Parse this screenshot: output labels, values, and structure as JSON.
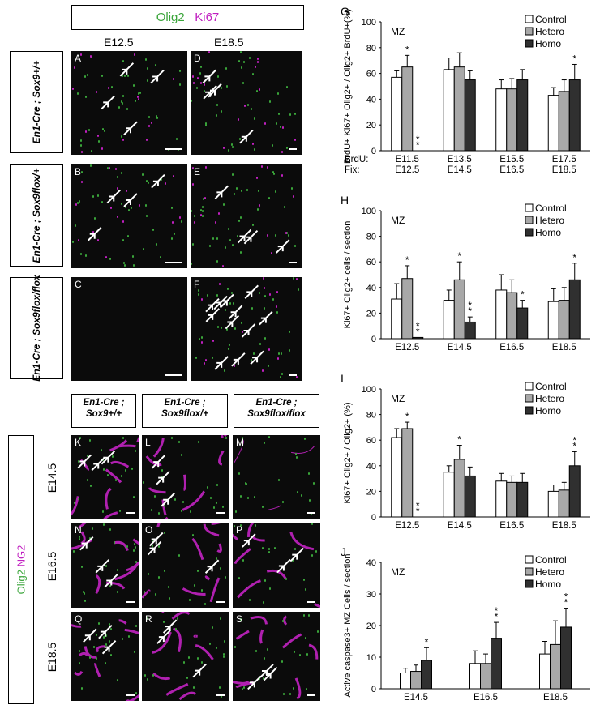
{
  "top": {
    "marker1": "Olig2",
    "marker2": "Ki67",
    "col_e125": "E12.5",
    "col_e185": "E18.5",
    "row1": "En1-Cre ; Sox9+/+",
    "row2": "En1-Cre ; Sox9flox/+",
    "row3": "En1-Cre ; Sox9flox/flox",
    "panels": [
      "A",
      "B",
      "C",
      "D",
      "E",
      "F"
    ]
  },
  "bottom": {
    "col1_l1": "En1-Cre ;",
    "col1_l2": "Sox9+/+",
    "col2_l1": "En1-Cre ;",
    "col2_l2": "Sox9flox/+",
    "col3_l1": "En1-Cre ;",
    "col3_l2": "Sox9flox/flox",
    "marker1": "Olig2",
    "marker2": "NG2",
    "stages": [
      "E14.5",
      "E16.5",
      "E18.5"
    ],
    "panels": [
      "K",
      "L",
      "M",
      "N",
      "O",
      "P",
      "Q",
      "R",
      "S"
    ]
  },
  "colors": {
    "green": "#3aa53a",
    "magenta": "#c020c0",
    "control": "#ffffff",
    "hetero": "#a8a8a8",
    "homo": "#303030"
  },
  "chart_data": [
    {
      "panel": "G",
      "type": "bar",
      "region": "MZ",
      "ylabel": "BrdU+ Ki67+ Olig2+ / Olig2+ BrdU+(%)",
      "ylim": [
        0,
        100
      ],
      "yticks": [
        0,
        20,
        40,
        60,
        80,
        100
      ],
      "xrow1_label": "BrdU:",
      "xrow2_label": "Fix:",
      "categories": [
        "E11.5",
        "E13.5",
        "E15.5",
        "E17.5"
      ],
      "categories2": [
        "E12.5",
        "E14.5",
        "E16.5",
        "E18.5"
      ],
      "series": [
        {
          "name": "Control",
          "values": [
            57,
            63,
            48,
            43
          ],
          "err": [
            5,
            9,
            7,
            6
          ]
        },
        {
          "name": "Hetero",
          "values": [
            65,
            65,
            48,
            46
          ],
          "err": [
            9,
            11,
            8,
            9
          ]
        },
        {
          "name": "Homo",
          "values": [
            0,
            55,
            55,
            55
          ],
          "err": [
            0,
            7,
            8,
            12
          ]
        }
      ],
      "sig": [
        [
          "*",
          "**"
        ],
        [
          "",
          ""
        ],
        [
          "",
          ""
        ],
        [
          "",
          "*"
        ]
      ],
      "legend": "top-right"
    },
    {
      "panel": "H",
      "type": "bar",
      "region": "MZ",
      "ylabel": "Ki67+ Olig2+ cells / section",
      "ylim": [
        0,
        100
      ],
      "yticks": [
        0,
        20,
        40,
        60,
        80,
        100
      ],
      "categories": [
        "E12.5",
        "E14.5",
        "E16.5",
        "E18.5"
      ],
      "series": [
        {
          "name": "Control",
          "values": [
            31,
            30,
            38,
            29
          ],
          "err": [
            12,
            8,
            12,
            10
          ]
        },
        {
          "name": "Hetero",
          "values": [
            47,
            46,
            36,
            30
          ],
          "err": [
            10,
            14,
            10,
            10
          ]
        },
        {
          "name": "Homo",
          "values": [
            1,
            13,
            24,
            46
          ],
          "err": [
            0,
            4,
            6,
            13
          ]
        }
      ],
      "sig": [
        [
          "*",
          "**"
        ],
        [
          "*",
          "**"
        ],
        [
          "",
          "*"
        ],
        [
          "",
          "*"
        ]
      ],
      "legend": "top-right"
    },
    {
      "panel": "I",
      "type": "bar",
      "region": "MZ",
      "ylabel": "Ki67+ Olig2+ / Olig2+ (%)",
      "ylim": [
        0,
        100
      ],
      "yticks": [
        0,
        20,
        40,
        60,
        80,
        100
      ],
      "categories": [
        "E12.5",
        "E14.5",
        "E16.5",
        "E18.5"
      ],
      "series": [
        {
          "name": "Control",
          "values": [
            62,
            35,
            28,
            20
          ],
          "err": [
            7,
            5,
            6,
            5
          ]
        },
        {
          "name": "Hetero",
          "values": [
            69,
            45,
            27,
            21
          ],
          "err": [
            5,
            11,
            5,
            6
          ]
        },
        {
          "name": "Homo",
          "values": [
            0,
            32,
            27,
            40
          ],
          "err": [
            0,
            7,
            7,
            11
          ]
        }
      ],
      "sig": [
        [
          "*",
          "**"
        ],
        [
          "*",
          ""
        ],
        [
          "",
          ""
        ],
        [
          "",
          "**"
        ]
      ],
      "legend": "top-right"
    },
    {
      "panel": "J",
      "type": "bar",
      "region": "MZ",
      "ylabel": "Active caspase3+ MZ Cells / section",
      "ylim": [
        0,
        40
      ],
      "yticks": [
        0,
        10,
        20,
        30,
        40
      ],
      "categories": [
        "E14.5",
        "E16.5",
        "E18.5"
      ],
      "series": [
        {
          "name": "Control",
          "values": [
            5,
            8,
            11
          ],
          "err": [
            1.5,
            4,
            4
          ]
        },
        {
          "name": "Hetero",
          "values": [
            5.5,
            8,
            14
          ],
          "err": [
            2,
            3,
            7.5
          ]
        },
        {
          "name": "Homo",
          "values": [
            9,
            16,
            19.5
          ],
          "err": [
            4,
            5,
            6
          ]
        }
      ],
      "sig": [
        [
          "",
          "*"
        ],
        [
          "",
          "**"
        ],
        [
          "",
          "**"
        ]
      ],
      "legend": "top-right"
    }
  ]
}
